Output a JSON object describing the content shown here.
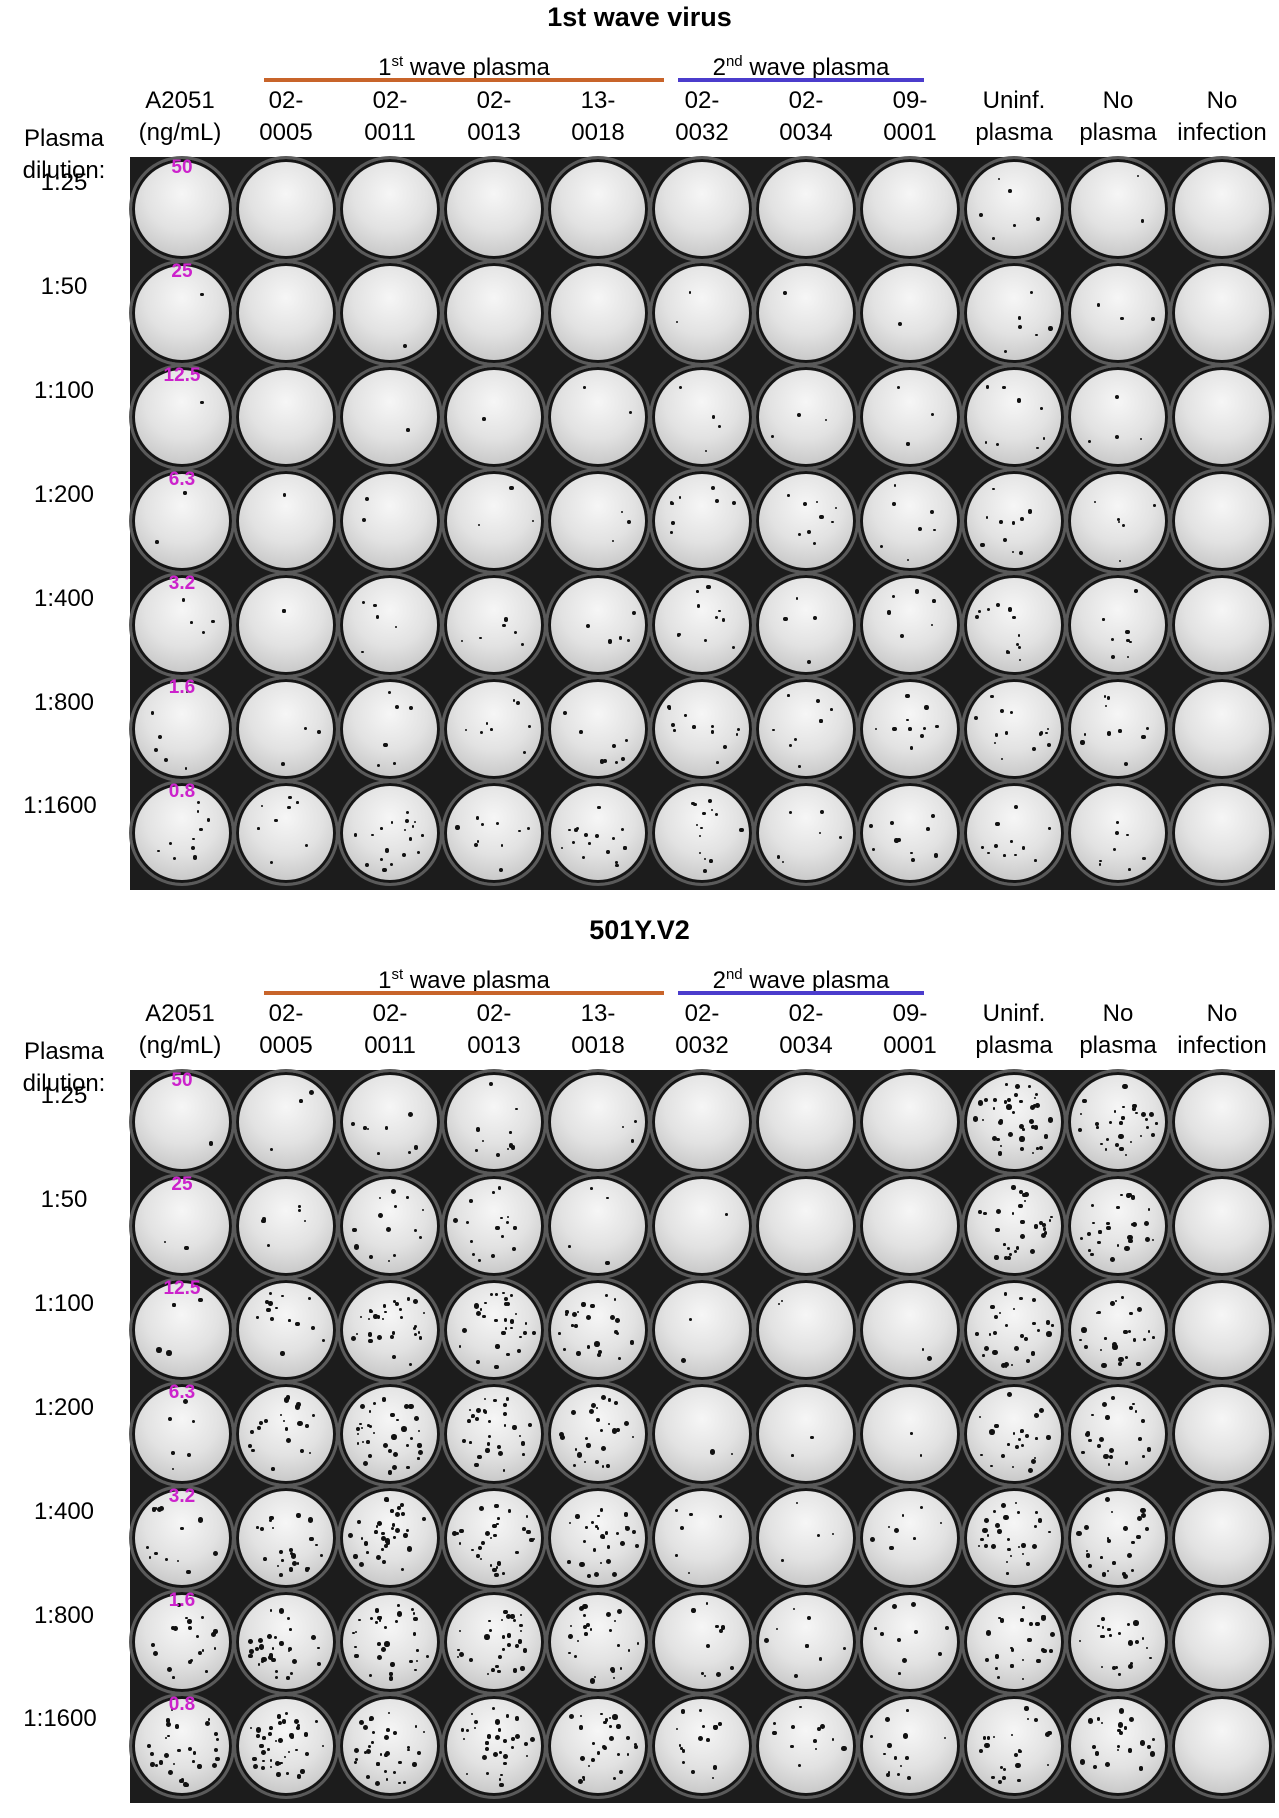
{
  "panels": [
    {
      "title": "1st wave virus",
      "group_1": {
        "label": "wave plasma",
        "ordinal": "1",
        "superscript": "st",
        "color": "#c8642a"
      },
      "group_2": {
        "label": "wave plasma",
        "ordinal": "2",
        "superscript": "nd",
        "color": "#4b3ccc"
      },
      "row_header": [
        "Plasma",
        "dilution:"
      ],
      "columns": [
        [
          "A2051",
          "(ng/mL)"
        ],
        [
          "02-",
          "0005"
        ],
        [
          "02-",
          "0011"
        ],
        [
          "02-",
          "0013"
        ],
        [
          "13-",
          "0018"
        ],
        [
          "02-",
          "0032"
        ],
        [
          "02-",
          "0034"
        ],
        [
          "09-",
          "0001"
        ],
        [
          "Uninf.",
          "plasma"
        ],
        [
          "No",
          "plasma"
        ],
        [
          "No",
          "infection"
        ]
      ],
      "rows": [
        "1:25",
        "1:50",
        "1:100",
        "1:200",
        "1:400",
        "1:800",
        "1:1600"
      ],
      "a2051_concentrations": [
        "50",
        "25",
        "12.5",
        "6.3",
        "3.2",
        "1.6",
        "0.8"
      ],
      "spot_density": [
        [
          0,
          0,
          0,
          0,
          0,
          0,
          0,
          0,
          6,
          2,
          0
        ],
        [
          1,
          0,
          1,
          0,
          0,
          2,
          1,
          1,
          6,
          3,
          0
        ],
        [
          1,
          0,
          1,
          1,
          2,
          4,
          3,
          3,
          8,
          4,
          0
        ],
        [
          2,
          1,
          2,
          3,
          3,
          8,
          9,
          7,
          10,
          6,
          0
        ],
        [
          4,
          1,
          5,
          6,
          5,
          10,
          4,
          6,
          12,
          8,
          0
        ],
        [
          6,
          3,
          7,
          8,
          8,
          12,
          8,
          10,
          14,
          10,
          0
        ],
        [
          10,
          8,
          18,
          10,
          16,
          14,
          6,
          10,
          12,
          8,
          0
        ]
      ]
    },
    {
      "title": "501Y.V2",
      "group_1": {
        "label": "wave plasma",
        "ordinal": "1",
        "superscript": "st",
        "color": "#c8642a"
      },
      "group_2": {
        "label": "wave plasma",
        "ordinal": "2",
        "superscript": "nd",
        "color": "#4b3ccc"
      },
      "row_header": [
        "Plasma",
        "dilution:"
      ],
      "columns": [
        [
          "A2051",
          "(ng/mL)"
        ],
        [
          "02-",
          "0005"
        ],
        [
          "02-",
          "0011"
        ],
        [
          "02-",
          "0013"
        ],
        [
          "13-",
          "0018"
        ],
        [
          "02-",
          "0032"
        ],
        [
          "02-",
          "0034"
        ],
        [
          "09-",
          "0001"
        ],
        [
          "Uninf.",
          "plasma"
        ],
        [
          "No",
          "plasma"
        ],
        [
          "No",
          "infection"
        ]
      ],
      "rows": [
        "1:25",
        "1:50",
        "1:100",
        "1:200",
        "1:400",
        "1:800",
        "1:1600"
      ],
      "a2051_concentrations": [
        "50",
        "25",
        "12.5",
        "6.3",
        "3.2",
        "1.6",
        "0.8"
      ],
      "spot_density": [
        [
          1,
          3,
          8,
          10,
          3,
          0,
          0,
          0,
          40,
          30,
          0
        ],
        [
          2,
          6,
          14,
          16,
          4,
          1,
          0,
          0,
          30,
          26,
          0
        ],
        [
          4,
          14,
          30,
          30,
          24,
          2,
          2,
          2,
          28,
          26,
          0
        ],
        [
          6,
          20,
          36,
          30,
          26,
          2,
          2,
          2,
          24,
          22,
          0
        ],
        [
          14,
          24,
          36,
          30,
          28,
          6,
          4,
          8,
          28,
          24,
          0
        ],
        [
          20,
          30,
          32,
          30,
          26,
          10,
          8,
          10,
          24,
          22,
          0
        ],
        [
          30,
          40,
          34,
          32,
          30,
          16,
          12,
          14,
          22,
          22,
          0
        ]
      ]
    }
  ]
}
